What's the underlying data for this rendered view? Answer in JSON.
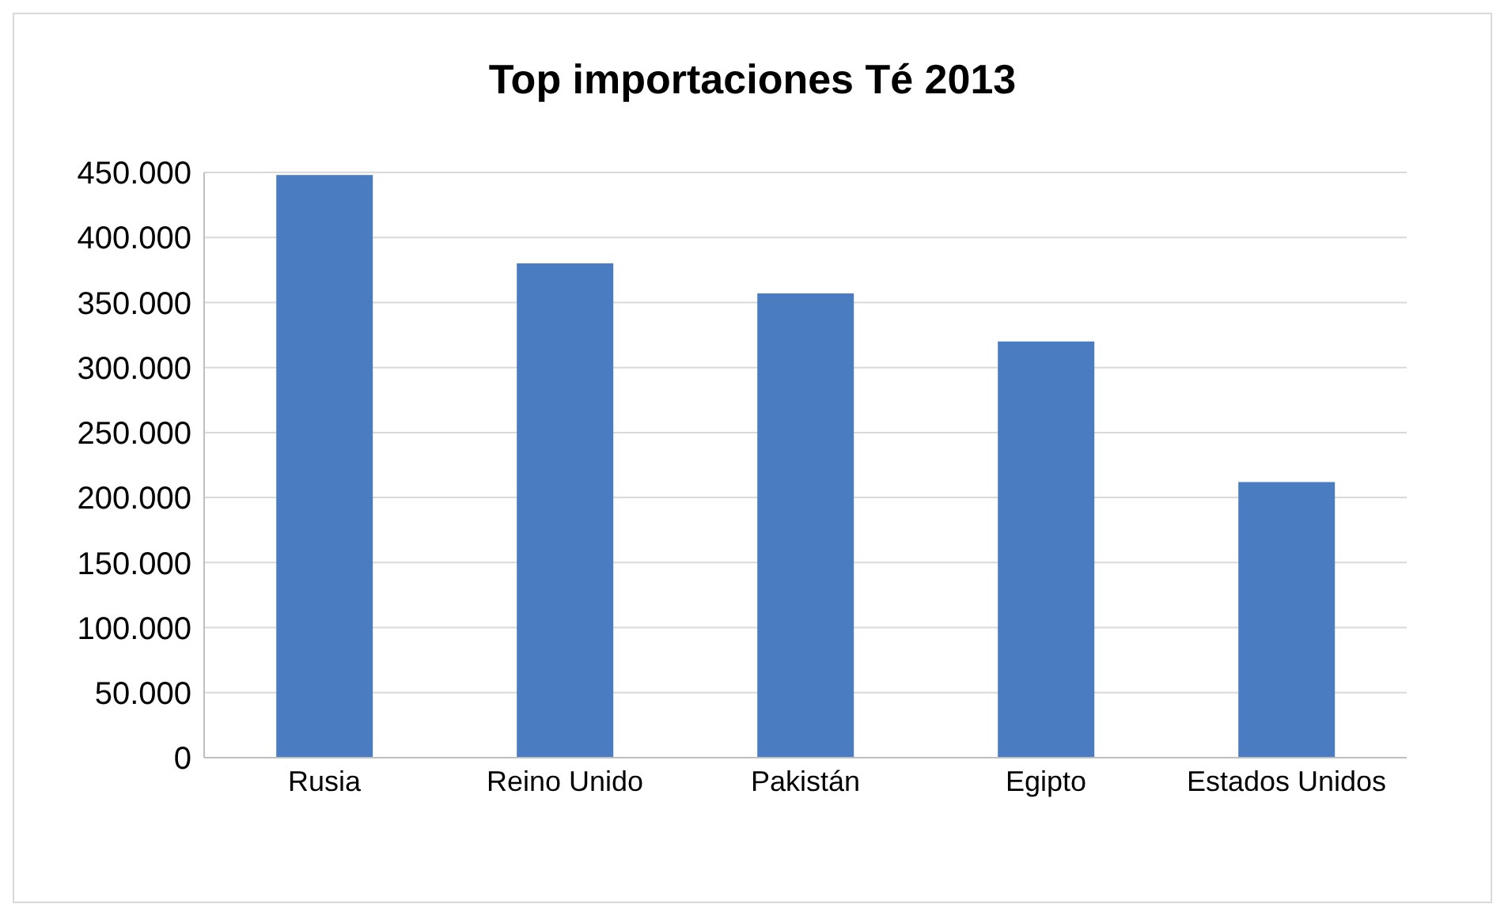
{
  "chart_data": {
    "type": "bar",
    "title": "Top importaciones Té 2013",
    "categories": [
      "Rusia",
      "Reino Unido",
      "Pakistán",
      "Egipto",
      "Estados Unidos"
    ],
    "values": [
      448000,
      380000,
      357000,
      320000,
      212000
    ],
    "color": "#4a7cc2",
    "ylim": [
      0,
      450000
    ],
    "yticks": [
      {
        "value": 0,
        "label": "0"
      },
      {
        "value": 50000,
        "label": "50.000"
      },
      {
        "value": 100000,
        "label": "100.000"
      },
      {
        "value": 150000,
        "label": "150.000"
      },
      {
        "value": 200000,
        "label": "200.000"
      },
      {
        "value": 250000,
        "label": "250.000"
      },
      {
        "value": 300000,
        "label": "300.000"
      },
      {
        "value": 350000,
        "label": "350.000"
      },
      {
        "value": 400000,
        "label": "400.000"
      },
      {
        "value": 450000,
        "label": "450.000"
      }
    ],
    "grid": "y"
  }
}
